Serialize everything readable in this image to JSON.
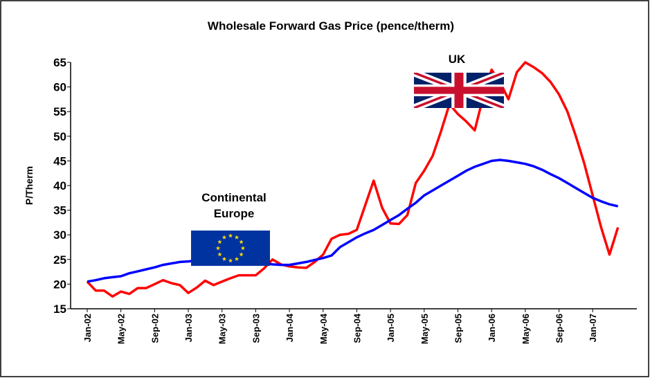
{
  "chart_data": {
    "type": "line",
    "title": "Wholesale Forward Gas Price (pence/therm)",
    "y_label": "P/Therm",
    "categories": [
      "Jan-02",
      null,
      null,
      null,
      "May-02",
      null,
      null,
      null,
      "Sep-02",
      null,
      null,
      null,
      "Jan-03",
      null,
      null,
      null,
      "May-03",
      null,
      null,
      null,
      "Sep-03",
      null,
      null,
      null,
      "Jan-04",
      null,
      null,
      null,
      "May-04",
      null,
      null,
      null,
      "Sep-04",
      null,
      null,
      null,
      "Jan-05",
      null,
      null,
      null,
      "May-05",
      null,
      null,
      null,
      "Sep-05",
      null,
      null,
      null,
      "Jan-06",
      null,
      null,
      null,
      "May-06",
      null,
      null,
      null,
      "Sep-06",
      null,
      null,
      null,
      "Jan-07",
      null,
      null,
      null
    ],
    "series": [
      {
        "name": "UK",
        "color": "#ff0000",
        "values": [
          20.5,
          18.7,
          18.7,
          17.5,
          18.5,
          18,
          19.2,
          19.2,
          20,
          20.8,
          20.2,
          19.8,
          18.2,
          19.3,
          20.7,
          19.8,
          20.5,
          21.2,
          21.8,
          21.8,
          21.8,
          23.2,
          25,
          24,
          23.6,
          23.4,
          23.3,
          24.5,
          26,
          29.2,
          30,
          30.2,
          31,
          36,
          41,
          35.5,
          32.3,
          32.2,
          34,
          40.5,
          43,
          46,
          51,
          56.5,
          54.5,
          53,
          51.2,
          58,
          63.5,
          61,
          57.5,
          63,
          65,
          64,
          62.8,
          61,
          58.5,
          55,
          50,
          44.5,
          38,
          31.5,
          26,
          31.5
        ]
      },
      {
        "name": "Continental Europe",
        "color": "#0000ff",
        "values": [
          20.5,
          20.8,
          21.2,
          21.4,
          21.6,
          22.2,
          22.6,
          23,
          23.4,
          23.9,
          24.2,
          24.5,
          24.6,
          24.8,
          25,
          25,
          25,
          25,
          24.8,
          24.6,
          24.4,
          24.2,
          24,
          23.9,
          23.9,
          24.2,
          24.5,
          24.9,
          25.3,
          25.8,
          27.5,
          28.5,
          29.5,
          30.3,
          31,
          32,
          33,
          34,
          35.3,
          36.5,
          38,
          39,
          40,
          41,
          42,
          43,
          43.8,
          44.4,
          45,
          45.2,
          45,
          44.7,
          44.4,
          43.9,
          43.2,
          42.3,
          41.5,
          40.5,
          39.5,
          38.5,
          37.5,
          36.8,
          36.2,
          35.8
        ]
      }
    ],
    "ylim": [
      15,
      65
    ],
    "yticks": [
      15,
      20,
      25,
      30,
      35,
      40,
      45,
      50,
      55,
      60,
      65
    ],
    "grid": false
  }
}
